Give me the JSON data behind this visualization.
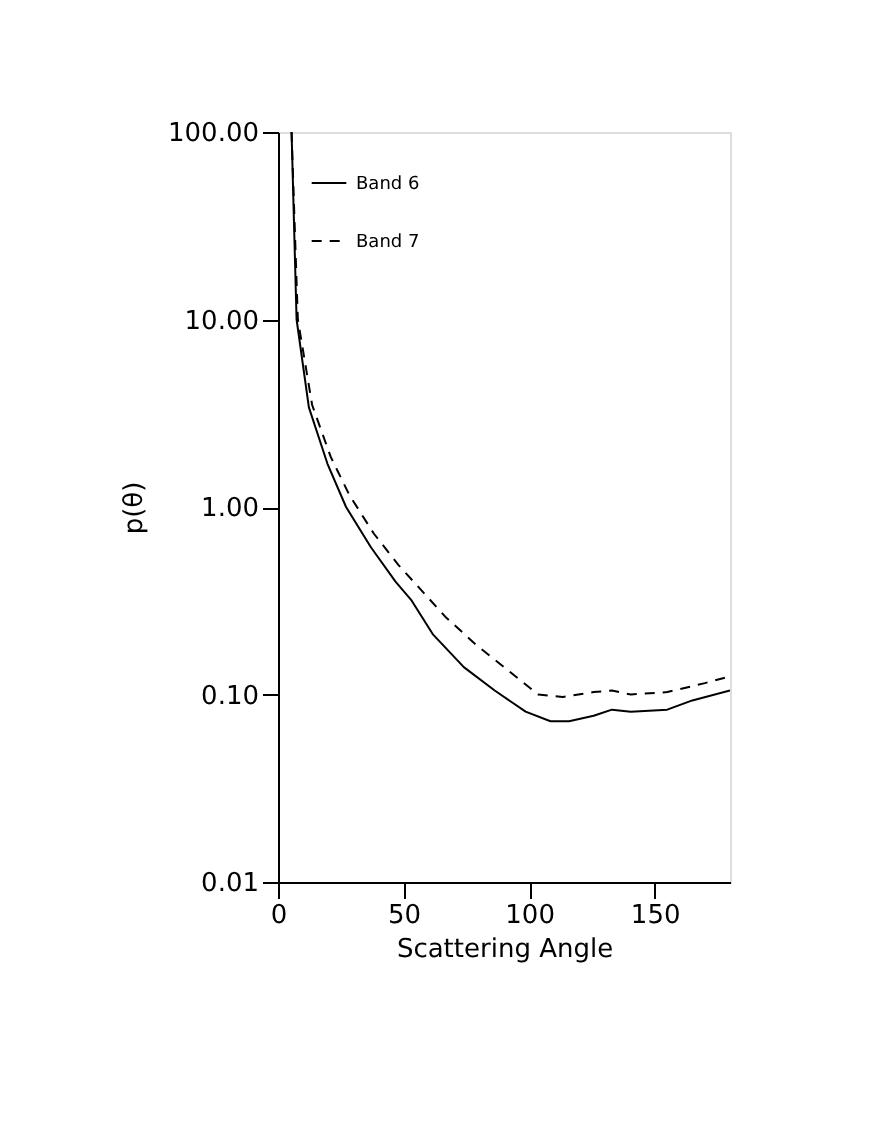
{
  "chart_data": {
    "type": "line",
    "xlabel": "Scattering Angle",
    "ylabel": "p(θ)",
    "log": "y",
    "grid": false,
    "legend": "top left",
    "marker": "none",
    "xlim": [
      0,
      180
    ],
    "xticks": [
      0,
      50,
      100,
      150
    ],
    "ylim": [
      0.01,
      100
    ],
    "yticks": [
      {
        "value": 0.01,
        "label": "0.01"
      },
      {
        "value": 0.1,
        "label": "0.10"
      },
      {
        "value": 1,
        "label": "1.00"
      },
      {
        "value": 10,
        "label": "10.00"
      },
      {
        "value": 100,
        "label": "100.00"
      }
    ],
    "series": [
      {
        "name": "Band 6",
        "color": "#000000",
        "line_style": "solid",
        "x": [
          5.4,
          7.4,
          12.3,
          19.7,
          27.1,
          37,
          46.8,
          53,
          61.6,
          74,
          86.3,
          98.6,
          108.5,
          115.9,
          125.7,
          133,
          140.5,
          155,
          165,
          180
        ],
        "values": [
          100,
          10,
          3.4,
          1.7,
          1.0,
          0.61,
          0.4,
          0.32,
          0.21,
          0.14,
          0.105,
          0.081,
          0.072,
          0.072,
          0.077,
          0.083,
          0.081,
          0.083,
          0.093,
          0.105
        ]
      },
      {
        "name": "Band 7",
        "color": "#000000",
        "line_style": "dashed",
        "x": [
          5.4,
          7.9,
          13.6,
          21,
          28.4,
          38.2,
          48,
          55.5,
          66.6,
          78.9,
          91.2,
          103.6,
          113.4,
          125.7,
          133,
          140.5,
          155,
          170,
          180
        ],
        "values": [
          100,
          10,
          3.5,
          1.85,
          1.16,
          0.72,
          0.49,
          0.38,
          0.26,
          0.184,
          0.136,
          0.1,
          0.097,
          0.103,
          0.105,
          0.1,
          0.103,
          0.115,
          0.125
        ]
      }
    ]
  }
}
